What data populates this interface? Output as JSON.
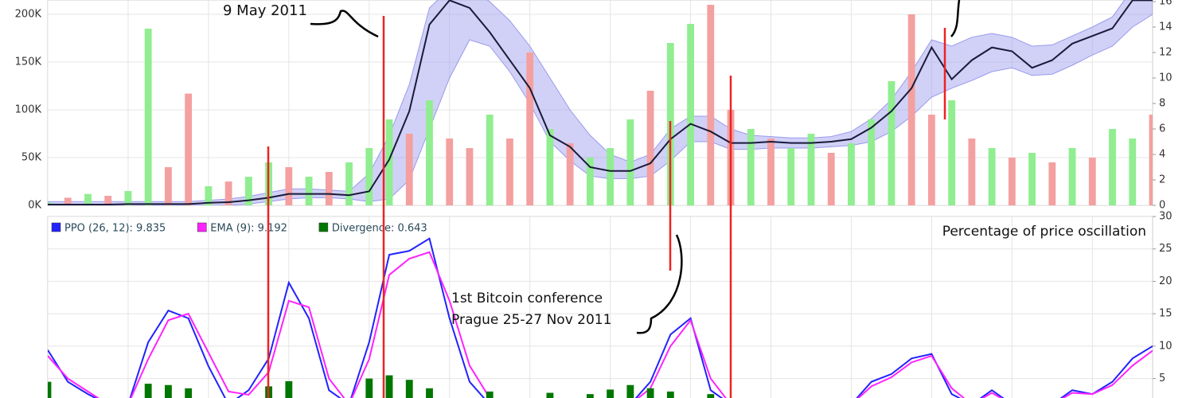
{
  "chart_data": [
    {
      "type": "bar",
      "annotations": [
        "9 May 2011"
      ],
      "ylim": [
        0,
        215000
      ],
      "yticks": [
        {
          "value": 0,
          "label": "0K"
        },
        {
          "value": 50000,
          "label": "50K"
        },
        {
          "value": 100000,
          "label": "100K"
        },
        {
          "value": 150000,
          "label": "150K"
        },
        {
          "value": 200000,
          "label": "200K"
        }
      ],
      "y2lim": [
        0,
        16.125
      ],
      "y2ticks": [
        0,
        2,
        4,
        6,
        8,
        10,
        12,
        14,
        16
      ],
      "grid": true,
      "series": [
        {
          "type": "bar",
          "values": [
            3000,
            8000,
            12000,
            10000,
            15000,
            185000,
            40000,
            117000,
            20000,
            25000,
            30000,
            45000,
            40000,
            30000,
            35000,
            45000,
            60000,
            90000,
            75000,
            110000,
            70000,
            60000,
            95000,
            70000,
            160000,
            80000,
            65000,
            50000,
            60000,
            90000,
            120000,
            170000,
            190000,
            210000,
            100000,
            80000,
            70000,
            60000,
            75000,
            55000,
            65000,
            90000,
            130000,
            200000,
            95000,
            110000,
            70000,
            60000,
            50000,
            55000,
            45000,
            60000,
            50000,
            80000,
            70000,
            95000
          ],
          "colors": [
            "#90ee90",
            "#f4a0a0",
            "#90ee90",
            "#f4a0a0",
            "#90ee90",
            "#90ee90",
            "#f4a0a0",
            "#f4a0a0",
            "#90ee90",
            "#f4a0a0",
            "#90ee90",
            "#90ee90",
            "#f4a0a0",
            "#90ee90",
            "#f4a0a0",
            "#90ee90",
            "#90ee90",
            "#90ee90",
            "#f4a0a0",
            "#90ee90",
            "#f4a0a0",
            "#f4a0a0",
            "#90ee90",
            "#f4a0a0",
            "#f4a0a0",
            "#90ee90",
            "#f4a0a0",
            "#90ee90",
            "#90ee90",
            "#90ee90",
            "#f4a0a0",
            "#90ee90",
            "#90ee90",
            "#f4a0a0",
            "#f4a0a0",
            "#90ee90",
            "#f4a0a0",
            "#90ee90",
            "#90ee90",
            "#f4a0a0",
            "#90ee90",
            "#90ee90",
            "#90ee90",
            "#f4a0a0",
            "#f4a0a0",
            "#90ee90",
            "#f4a0a0",
            "#90ee90",
            "#f4a0a0",
            "#90ee90",
            "#f4a0a0",
            "#90ee90",
            "#f4a0a0",
            "#90ee90",
            "#90ee90",
            "#f4a0a0"
          ]
        },
        {
          "type": "line",
          "axis": "y2",
          "color": "#1a1a3a",
          "values": [
            0.06,
            0.06,
            0.06,
            0.06,
            0.1,
            0.1,
            0.1,
            0.1,
            0.2,
            0.25,
            0.4,
            0.6,
            0.9,
            0.9,
            0.9,
            0.8,
            1.1,
            3.6,
            7.4,
            14.2,
            16.1,
            15.5,
            13.6,
            11.4,
            9.2,
            5.5,
            4.6,
            3.0,
            2.7,
            2.7,
            3.3,
            5.2,
            6.4,
            5.8,
            4.9,
            4.9,
            5.0,
            4.9,
            4.9,
            5.0,
            5.2,
            6.1,
            7.4,
            9.2,
            12.4,
            9.9,
            11.4,
            12.4,
            12.1,
            10.8,
            11.4,
            12.7,
            13.3,
            13.9,
            16.1,
            16.1
          ]
        }
      ],
      "band": {
        "axis": "y2",
        "color": "#9999ee",
        "upper": [
          0.3,
          0.3,
          0.3,
          0.3,
          0.3,
          0.3,
          0.3,
          0.3,
          0.4,
          0.5,
          0.7,
          1.0,
          1.3,
          1.3,
          1.2,
          1.1,
          2.5,
          5.5,
          9.5,
          15.5,
          17,
          17,
          16,
          14.5,
          12.5,
          10,
          7.5,
          5.5,
          4.0,
          3.4,
          4.0,
          6.0,
          7.0,
          7.0,
          6.0,
          5.5,
          5.4,
          5.3,
          5.3,
          5.4,
          5.8,
          6.8,
          8.3,
          10.5,
          13.0,
          12.5,
          13.2,
          13.5,
          13.2,
          12.5,
          12.6,
          13.3,
          14.0,
          14.8,
          17,
          17
        ],
        "lower": [
          0,
          0,
          0,
          0,
          0,
          0,
          0,
          0,
          0,
          0,
          0.1,
          0.3,
          0.5,
          0.6,
          0.6,
          0.5,
          0.3,
          0.5,
          2.0,
          6.0,
          10,
          13,
          12.5,
          10.5,
          8,
          5,
          3.5,
          2.3,
          2.1,
          2.1,
          2.3,
          3.5,
          5.0,
          5.0,
          4.4,
          4.4,
          4.5,
          4.5,
          4.5,
          4.6,
          4.7,
          5.0,
          5.8,
          7.0,
          8.5,
          9.2,
          9.8,
          10.5,
          10.8,
          10.2,
          10.3,
          11,
          11.8,
          12.5,
          14,
          15
        ]
      }
    },
    {
      "type": "line",
      "title": "Percentage of price oscillation",
      "annotations": [
        "1st Bitcoin conference",
        "Prague 25-27 Nov 2011"
      ],
      "y2lim": [
        2,
        30
      ],
      "y2ticks": [
        5,
        10,
        15,
        20,
        25,
        30
      ],
      "grid": true,
      "series": [
        {
          "name": "PPO (26, 12): 9.835",
          "type": "line",
          "axis": "y2",
          "color": "#2222ff",
          "values": [
            9.4,
            4.5,
            2.6,
            1,
            1,
            10.6,
            15.5,
            14.3,
            6.9,
            1,
            3.2,
            8.1,
            19.8,
            14.3,
            3.2,
            1,
            10.6,
            24.1,
            24.7,
            26.6,
            14.3,
            4.5,
            1,
            1,
            1,
            1,
            1,
            1,
            1,
            1,
            4.5,
            11.8,
            14.3,
            3.2,
            1,
            1,
            1,
            1,
            1,
            1,
            1,
            4.5,
            5.7,
            8.1,
            8.8,
            2.6,
            1,
            3.2,
            1,
            1,
            1,
            3.2,
            2.6,
            4.5,
            8.1,
            10
          ]
        },
        {
          "name": "EMA (9): 9.192",
          "type": "line",
          "axis": "y2",
          "color": "#ff22ff",
          "values": [
            8.5,
            5,
            3,
            1,
            1,
            8,
            14,
            15,
            9,
            3,
            2.5,
            6,
            17,
            16,
            5,
            1,
            8,
            21,
            23.5,
            24.5,
            17,
            7,
            2,
            1,
            1,
            1,
            1,
            1,
            1,
            1,
            3.5,
            10,
            14,
            5,
            1,
            1,
            1,
            1,
            1,
            1,
            1,
            3.8,
            5.2,
            7.5,
            8.5,
            3.5,
            1,
            2.8,
            1,
            1,
            1,
            2.8,
            2.6,
            4,
            7,
            9.3
          ]
        },
        {
          "name": "Divergence: 0.643",
          "type": "bar",
          "axis": "y2",
          "color": "#007700",
          "values": [
            4.5,
            0,
            0,
            0,
            0,
            4.2,
            4,
            3.5,
            0,
            0,
            0,
            3.8,
            4.6,
            0,
            0,
            0,
            5,
            5.5,
            4.8,
            3.5,
            0,
            0,
            3,
            0,
            0,
            2.8,
            0,
            2.6,
            3.3,
            4,
            3.5,
            3,
            0,
            2.6,
            0,
            0,
            0,
            0,
            0,
            0,
            0,
            0,
            0,
            0,
            0,
            0,
            0,
            0,
            0,
            0,
            0,
            0,
            0,
            0,
            0,
            0
          ]
        }
      ]
    }
  ]
}
